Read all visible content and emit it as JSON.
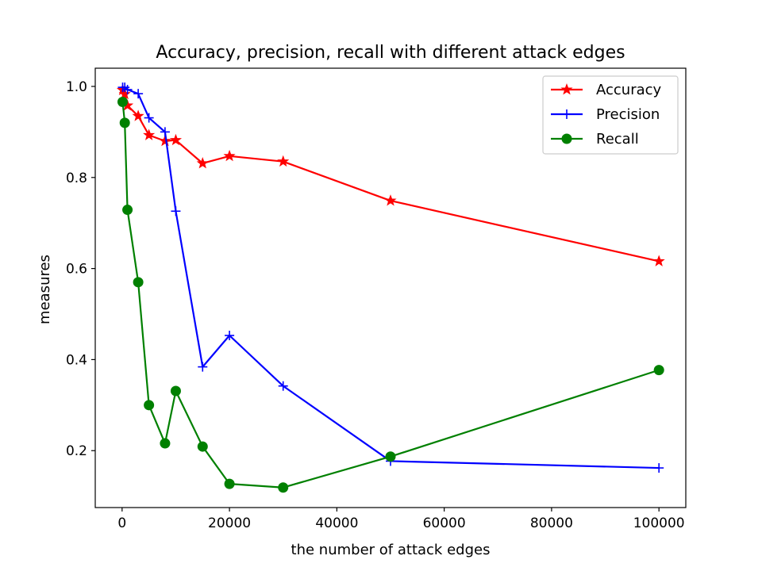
{
  "chart_data": {
    "type": "line",
    "title": "Accuracy, precision, recall with different attack edges",
    "xlabel": "the number of attack edges",
    "ylabel": "measures",
    "xlim": [
      -5000,
      105000
    ],
    "ylim": [
      0.075,
      1.04
    ],
    "x_ticks": [
      0,
      20000,
      40000,
      60000,
      80000,
      100000
    ],
    "x_tick_labels": [
      "0",
      "20000",
      "40000",
      "60000",
      "80000",
      "100000"
    ],
    "y_ticks": [
      0.2,
      0.4,
      0.6,
      0.8,
      1.0
    ],
    "y_tick_labels": [
      "0.2",
      "0.4",
      "0.6",
      "0.8",
      "1.0"
    ],
    "grid": false,
    "legend_position": "top-right",
    "series": [
      {
        "name": "Accuracy",
        "color": "#ff0000",
        "marker": "star",
        "x": [
          100,
          500,
          1000,
          3000,
          5000,
          8000,
          10000,
          15000,
          20000,
          30000,
          50000,
          100000
        ],
        "y": [
          0.992,
          0.983,
          0.958,
          0.935,
          0.893,
          0.88,
          0.882,
          0.831,
          0.847,
          0.835,
          0.749,
          0.616
        ]
      },
      {
        "name": "Precision",
        "color": "#0000ff",
        "marker": "plus",
        "x": [
          100,
          500,
          1000,
          3000,
          5000,
          8000,
          10000,
          15000,
          20000,
          30000,
          50000,
          100000
        ],
        "y": [
          0.998,
          0.998,
          0.993,
          0.984,
          0.931,
          0.9,
          0.726,
          0.384,
          0.453,
          0.342,
          0.177,
          0.162
        ]
      },
      {
        "name": "Recall",
        "color": "#008000",
        "marker": "circle",
        "x": [
          100,
          500,
          1000,
          3000,
          5000,
          8000,
          10000,
          15000,
          20000,
          30000,
          50000,
          100000
        ],
        "y": [
          0.966,
          0.92,
          0.729,
          0.57,
          0.3,
          0.216,
          0.331,
          0.209,
          0.127,
          0.119,
          0.187,
          0.377
        ]
      }
    ]
  }
}
